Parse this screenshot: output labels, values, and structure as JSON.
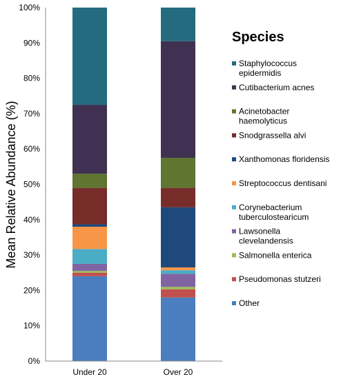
{
  "chart_data": {
    "type": "bar",
    "stacked": true,
    "categories": [
      "Under 20",
      "Over 20"
    ],
    "ylabel": "Mean Relative Abundance (%)",
    "ylim": [
      0,
      100
    ],
    "yticks": [
      "0%",
      "10%",
      "20%",
      "30%",
      "40%",
      "50%",
      "60%",
      "70%",
      "80%",
      "90%",
      "100%"
    ],
    "grid": false,
    "legend": {
      "title": "Species",
      "position": "right"
    },
    "series": [
      {
        "name": "Other",
        "color": "#4a7ebf",
        "values": [
          24.0,
          18.0
        ]
      },
      {
        "name": "Pseudomonas stutzeri",
        "color": "#c0504d",
        "values": [
          1.0,
          2.3
        ]
      },
      {
        "name": "Salmonella enterica",
        "color": "#9bbb59",
        "values": [
          0.5,
          0.7
        ]
      },
      {
        "name": "Lawsonella clevelandensis",
        "color": "#8064a2",
        "values": [
          2.0,
          3.7
        ]
      },
      {
        "name": "Corynebacterium tuberculostearicum",
        "color": "#4bacc6",
        "values": [
          4.2,
          1.0
        ]
      },
      {
        "name": "Streptococcus dentisani",
        "color": "#f79646",
        "values": [
          6.3,
          0.8
        ]
      },
      {
        "name": "Xanthomonas floridensis",
        "color": "#1f497d",
        "values": [
          0.7,
          17.0
        ]
      },
      {
        "name": "Snodgrassella alvi",
        "color": "#772c2a",
        "values": [
          10.3,
          5.5
        ]
      },
      {
        "name": "Acinetobacter haemolyticus",
        "color": "#5f7530",
        "values": [
          4.0,
          8.5
        ]
      },
      {
        "name": "Cutibacterium acnes",
        "color": "#403152",
        "values": [
          19.5,
          33.0
        ]
      },
      {
        "name": "Staphylococcus epidermidis",
        "color": "#246b80",
        "values": [
          27.5,
          9.5
        ]
      }
    ]
  }
}
